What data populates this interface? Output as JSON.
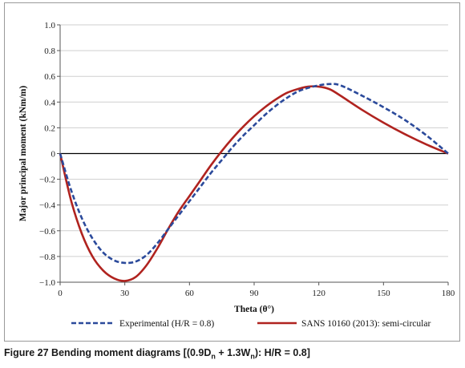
{
  "chart_data": {
    "type": "line",
    "xlabel": "Theta (θ°)",
    "ylabel": "Major principal moment (kNm/m)",
    "xlim": [
      0,
      180
    ],
    "ylim": [
      -1.0,
      1.0
    ],
    "xticks": [
      "0",
      "30",
      "60",
      "90",
      "120",
      "150",
      "180"
    ],
    "yticks": [
      "1.0",
      "0.8",
      "0.6",
      "0.4",
      "0.2",
      "0",
      "−0.2",
      "−0.4",
      "−0.6",
      "−0.8",
      "−1.0"
    ],
    "grid": "horizontal",
    "legend_position": "bottom",
    "series": [
      {
        "name": "Experimental (H/R = 0.8)",
        "color": "#2b4a9b",
        "style": "dashed",
        "x": [
          0,
          5,
          10,
          15,
          20,
          25,
          30,
          35,
          40,
          45,
          50,
          55,
          60,
          65,
          70,
          75,
          80,
          85,
          90,
          95,
          100,
          105,
          110,
          115,
          120,
          125,
          130,
          140,
          150,
          160,
          170,
          180
        ],
        "y": [
          0,
          -0.28,
          -0.5,
          -0.66,
          -0.77,
          -0.83,
          -0.85,
          -0.84,
          -0.79,
          -0.7,
          -0.59,
          -0.48,
          -0.37,
          -0.26,
          -0.15,
          -0.05,
          0.05,
          0.14,
          0.22,
          0.3,
          0.37,
          0.43,
          0.48,
          0.51,
          0.53,
          0.54,
          0.53,
          0.45,
          0.36,
          0.26,
          0.14,
          0
        ]
      },
      {
        "name": "SANS 10160 (2013): semi-circular",
        "color": "#b0231f",
        "style": "solid",
        "x": [
          0,
          5,
          10,
          15,
          20,
          25,
          30,
          35,
          40,
          45,
          50,
          55,
          60,
          65,
          70,
          75,
          80,
          85,
          90,
          95,
          100,
          105,
          110,
          115,
          120,
          125,
          130,
          140,
          150,
          160,
          170,
          180
        ],
        "y": [
          0,
          -0.36,
          -0.62,
          -0.8,
          -0.91,
          -0.97,
          -0.99,
          -0.96,
          -0.87,
          -0.74,
          -0.59,
          -0.45,
          -0.33,
          -0.21,
          -0.09,
          0.02,
          0.12,
          0.21,
          0.29,
          0.36,
          0.42,
          0.47,
          0.5,
          0.52,
          0.52,
          0.5,
          0.45,
          0.34,
          0.24,
          0.15,
          0.07,
          0
        ]
      }
    ]
  },
  "caption": {
    "label": "Figure 27",
    "text_pre": " Bending moment diagrams [(0.9D",
    "sub1": "n",
    "text_mid": " + 1.3W",
    "sub2": "n",
    "text_post": "): H/R = 0.8]"
  }
}
